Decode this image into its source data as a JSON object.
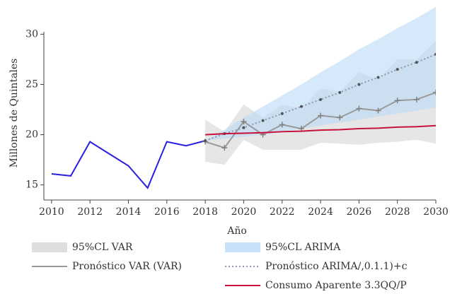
{
  "chart_data": {
    "type": "line",
    "x_label": "Año",
    "y_label": "Millones de Quintales",
    "xlim": [
      2009.6,
      2030
    ],
    "ylim": [
      13.5,
      32.7
    ],
    "xticks": [
      2010,
      2012,
      2014,
      2016,
      2018,
      2020,
      2022,
      2024,
      2026,
      2028,
      2030
    ],
    "yticks": [
      15,
      20,
      25,
      30
    ],
    "bands": [
      {
        "name": "95%CL VAR",
        "color": "#d6d6d6",
        "x": [
          2018,
          2019,
          2020,
          2021,
          2022,
          2023,
          2024,
          2025,
          2026,
          2027,
          2028,
          2029,
          2030
        ],
        "lower": [
          17.3,
          17.0,
          19.5,
          18.5,
          18.5,
          18.5,
          19.2,
          19.1,
          19.0,
          19.2,
          19.3,
          19.5,
          19.1
        ],
        "upper": [
          21.5,
          20.3,
          23.0,
          21.7,
          23.0,
          22.6,
          24.6,
          24.3,
          26.2,
          25.5,
          27.5,
          27.5,
          29.3
        ]
      },
      {
        "name": "95%CL ARIMA",
        "color": "#b9daf6",
        "x": [
          2018,
          2019,
          2020,
          2021,
          2022,
          2023,
          2024,
          2025,
          2026,
          2027,
          2028,
          2029,
          2030
        ],
        "lower": [
          19.4,
          19.6,
          19.8,
          20.0,
          20.3,
          20.6,
          20.9,
          21.2,
          21.5,
          21.8,
          22.1,
          22.4,
          22.7
        ],
        "upper": [
          19.4,
          20.5,
          21.7,
          22.8,
          23.9,
          25.0,
          26.2,
          27.3,
          28.5,
          29.5,
          30.6,
          31.6,
          32.7
        ]
      }
    ],
    "series": [
      {
        "color": "#2a1fe0",
        "style": "solid",
        "x": [
          2010,
          2011,
          2012,
          2013,
          2014,
          2015,
          2016,
          2017,
          2018
        ],
        "values": [
          16.1,
          15.9,
          19.3,
          18.1,
          16.9,
          14.7,
          19.3,
          18.9,
          19.4
        ]
      },
      {
        "name": "Pronóstico VAR (VAR)",
        "color": "#9a9a9a",
        "style": "solid",
        "marker": "plus",
        "x": [
          2018,
          2019,
          2020,
          2021,
          2022,
          2023,
          2024,
          2025,
          2026,
          2027,
          2028,
          2029,
          2030
        ],
        "values": [
          19.3,
          18.7,
          21.3,
          20.0,
          21.0,
          20.6,
          21.9,
          21.7,
          22.6,
          22.4,
          23.4,
          23.5,
          24.2
        ]
      },
      {
        "name": "Pronóstico ARIMA/,0.1.1)+c",
        "color": "#8a98b0",
        "style": "dotted",
        "marker": "dot",
        "x": [
          2018,
          2019,
          2020,
          2021,
          2022,
          2023,
          2024,
          2025,
          2026,
          2027,
          2028,
          2029,
          2030
        ],
        "values": [
          19.4,
          20.1,
          20.7,
          21.4,
          22.1,
          22.8,
          23.5,
          24.2,
          25.0,
          25.7,
          26.5,
          27.2,
          28.0
        ]
      },
      {
        "name": "Consumo Aparente 3.3QQ/P",
        "color": "#c8103c",
        "style": "solid",
        "x": [
          2018,
          2019,
          2020,
          2021,
          2022,
          2023,
          2024,
          2025,
          2026,
          2027,
          2028,
          2029,
          2030
        ],
        "values": [
          20.0,
          20.1,
          20.15,
          20.2,
          20.3,
          20.35,
          20.45,
          20.5,
          20.6,
          20.65,
          20.75,
          20.8,
          20.9
        ]
      }
    ]
  }
}
